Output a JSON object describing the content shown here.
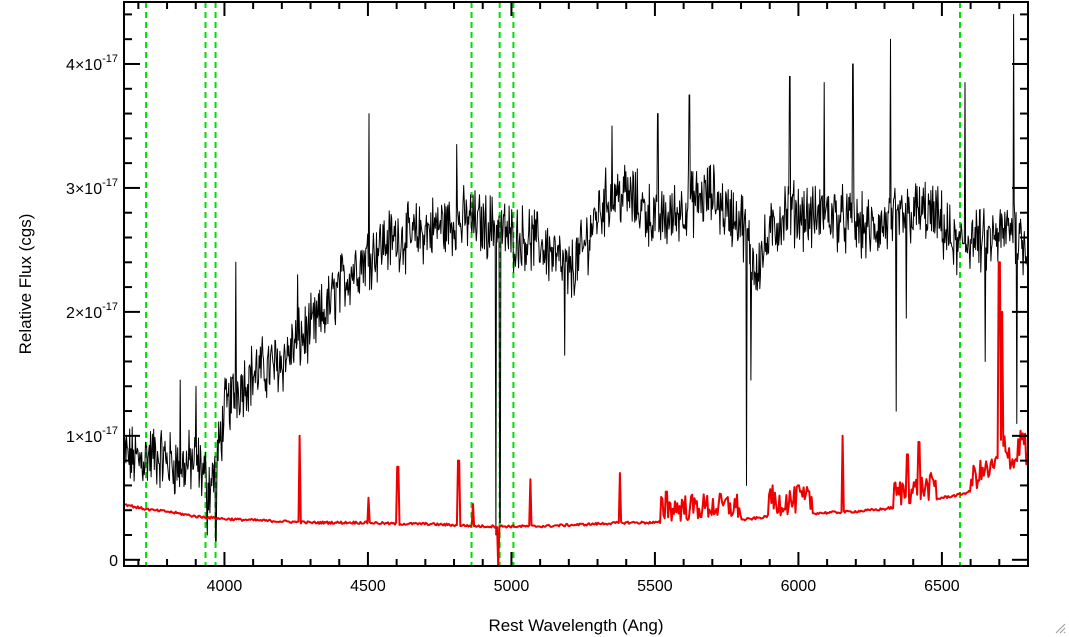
{
  "chart_data": {
    "type": "line",
    "title": "",
    "xlabel": "Rest Wavelength (Ang)",
    "ylabel": "Relative Flux (cgs)",
    "xlim": [
      3650,
      6800
    ],
    "ylim": [
      -5e-19,
      4.5e-17
    ],
    "x_ticks": [
      4000,
      4500,
      5000,
      5500,
      6000,
      6500
    ],
    "x_tick_labels": [
      "4000",
      "4500",
      "5000",
      "5500",
      "6000",
      "6500"
    ],
    "y_ticks": [
      0,
      1e-17,
      2e-17,
      3e-17,
      4e-17
    ],
    "y_tick_labels": [
      {
        "mantissa": "0",
        "exponent": ""
      },
      {
        "mantissa": "1×10",
        "exponent": "-17"
      },
      {
        "mantissa": "2×10",
        "exponent": "-17"
      },
      {
        "mantissa": "3×10",
        "exponent": "-17"
      },
      {
        "mantissa": "4×10",
        "exponent": "-17"
      }
    ],
    "grid": false,
    "vlines": {
      "color": "#00dd00",
      "style": "dashed",
      "x": [
        3727,
        3934,
        3969,
        4861,
        4959,
        5007,
        6563
      ]
    },
    "series": [
      {
        "color": "#000000",
        "style": "noisy",
        "x": [
          3650,
          3700,
          3750,
          3800,
          3850,
          3900,
          3950,
          3975,
          4000,
          4050,
          4100,
          4150,
          4200,
          4250,
          4300,
          4350,
          4400,
          4450,
          4500,
          4550,
          4600,
          4650,
          4700,
          4750,
          4800,
          4850,
          4900,
          4950,
          5000,
          5050,
          5100,
          5150,
          5200,
          5250,
          5300,
          5350,
          5400,
          5450,
          5500,
          5550,
          5600,
          5650,
          5700,
          5750,
          5800,
          5850,
          5900,
          5950,
          6000,
          6050,
          6100,
          6150,
          6200,
          6250,
          6300,
          6350,
          6400,
          6450,
          6500,
          6550,
          6600,
          6650,
          6700,
          6750,
          6800
        ],
        "y": [
          8.5e-18,
          8e-18,
          8.5e-18,
          8e-18,
          7.5e-18,
          8e-18,
          6e-18,
          8e-18,
          1.2e-17,
          1.4e-17,
          1.5e-17,
          1.55e-17,
          1.6e-17,
          1.75e-17,
          1.85e-17,
          2e-17,
          2.2e-17,
          2.35e-17,
          2.45e-17,
          2.55e-17,
          2.6e-17,
          2.6e-17,
          2.65e-17,
          2.7e-17,
          2.7e-17,
          2.75e-17,
          2.7e-17,
          2.7e-17,
          2.6e-17,
          2.6e-17,
          2.55e-17,
          2.45e-17,
          2.3e-17,
          2.5e-17,
          2.8e-17,
          2.95e-17,
          2.95e-17,
          2.85e-17,
          2.75e-17,
          2.75e-17,
          2.85e-17,
          2.9e-17,
          2.95e-17,
          2.8e-17,
          2.75e-17,
          2.35e-17,
          2.6e-17,
          2.8e-17,
          2.8e-17,
          2.75e-17,
          2.8e-17,
          2.75e-17,
          2.7e-17,
          2.65e-17,
          2.7e-17,
          2.75e-17,
          2.8e-17,
          2.8e-17,
          2.7e-17,
          2.5e-17,
          2.6e-17,
          2.55e-17,
          2.6e-17,
          2.7e-17,
          2.5e-17
        ],
        "spikes": [
          {
            "x": 4503,
            "y": 3.6e-17
          },
          {
            "x": 4255,
            "y": 2.3e-17
          },
          {
            "x": 4040,
            "y": 2.4e-17
          },
          {
            "x": 4810,
            "y": 3.35e-17
          },
          {
            "x": 4945,
            "y": 2e-18
          },
          {
            "x": 4960,
            "y": 3e-18
          },
          {
            "x": 5185,
            "y": 1.65e-17
          },
          {
            "x": 5350,
            "y": 3.5e-17
          },
          {
            "x": 5510,
            "y": 3.6e-17
          },
          {
            "x": 5620,
            "y": 3.75e-17
          },
          {
            "x": 5820,
            "y": 6e-18
          },
          {
            "x": 5835,
            "y": 1.45e-17
          },
          {
            "x": 5970,
            "y": 3.9e-17
          },
          {
            "x": 6090,
            "y": 3.85e-17
          },
          {
            "x": 6190,
            "y": 4e-17
          },
          {
            "x": 6320,
            "y": 4.2e-17
          },
          {
            "x": 6340,
            "y": 1.2e-17
          },
          {
            "x": 6375,
            "y": 1.95e-17
          },
          {
            "x": 6580,
            "y": 3.85e-17
          },
          {
            "x": 6650,
            "y": 1.6e-17
          },
          {
            "x": 6750,
            "y": 4.4e-17
          },
          {
            "x": 6760,
            "y": 1.1e-17
          },
          {
            "x": 3845,
            "y": 1.45e-17
          },
          {
            "x": 3900,
            "y": 1.4e-17
          },
          {
            "x": 3940,
            "y": 2e-18
          },
          {
            "x": 3970,
            "y": 1.5e-18
          }
        ]
      },
      {
        "color": "#ee0000",
        "style": "smooth",
        "x": [
          3650,
          3700,
          3750,
          3800,
          3850,
          3900,
          3950,
          4000,
          4100,
          4200,
          4300,
          4400,
          4500,
          4600,
          4700,
          4800,
          4900,
          5000,
          5100,
          5200,
          5300,
          5400,
          5500,
          5600,
          5700,
          5800,
          5900,
          6000,
          6100,
          6200,
          6300,
          6400,
          6500,
          6550,
          6600,
          6650,
          6680,
          6720,
          6750,
          6780,
          6800
        ],
        "y": [
          4.5e-18,
          4.2e-18,
          4e-18,
          3.9e-18,
          3.7e-18,
          3.5e-18,
          3.4e-18,
          3.3e-18,
          3.2e-18,
          3.1e-18,
          3e-18,
          3e-18,
          3e-18,
          2.9e-18,
          2.9e-18,
          2.8e-18,
          2.7e-18,
          2.7e-18,
          2.7e-18,
          2.8e-18,
          2.9e-18,
          3e-18,
          3e-18,
          3.1e-18,
          3.2e-18,
          3.2e-18,
          3.5e-18,
          3.7e-18,
          3.8e-18,
          3.9e-18,
          4.1e-18,
          4.5e-18,
          5e-18,
          5.2e-18,
          5.5e-18,
          6e-18,
          6.2e-18,
          8.5e-18,
          6.5e-18,
          9e-18,
          7e-18
        ],
        "spikes": [
          {
            "x": 4262,
            "y": 1e-17
          },
          {
            "x": 4501,
            "y": 5e-18
          },
          {
            "x": 4604,
            "y": 7.5e-18
          },
          {
            "x": 4816,
            "y": 8e-18
          },
          {
            "x": 4866,
            "y": 4.5e-18
          },
          {
            "x": 4955,
            "y": -5e-19
          },
          {
            "x": 5066,
            "y": 6.5e-18
          },
          {
            "x": 5378,
            "y": 7e-18
          },
          {
            "x": 5540,
            "y": 5.5e-18
          },
          {
            "x": 5910,
            "y": 6e-18
          },
          {
            "x": 6000,
            "y": 6e-18
          },
          {
            "x": 6155,
            "y": 1e-17
          },
          {
            "x": 6380,
            "y": 8.5e-18
          },
          {
            "x": 6420,
            "y": 9.5e-18
          },
          {
            "x": 6700,
            "y": 2.4e-17
          },
          {
            "x": 6710,
            "y": 2e-17
          }
        ]
      }
    ]
  }
}
